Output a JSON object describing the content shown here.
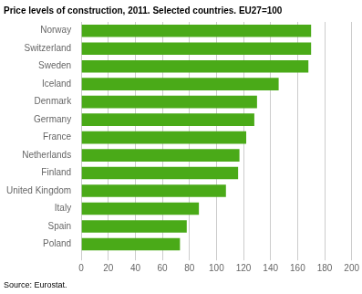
{
  "chart_data": {
    "type": "bar",
    "orientation": "horizontal",
    "title": "Price levels of construction, 2011. Selected countries. EU27=100",
    "categories": [
      "Norway",
      "Switzerland",
      "Sweden",
      "Iceland",
      "Denmark",
      "Germany",
      "France",
      "Netherlands",
      "Finland",
      "United Kingdom",
      "Italy",
      "Spain",
      "Poland"
    ],
    "values": [
      170,
      170,
      168,
      146,
      130,
      128,
      122,
      117,
      116,
      107,
      87,
      78,
      73
    ],
    "color": "#4aaa18",
    "xlim": [
      0,
      200
    ],
    "xticks": [
      0,
      20,
      40,
      60,
      80,
      100,
      120,
      140,
      160,
      180,
      200
    ],
    "grid": true,
    "annotations": [
      "Source: Eurostat."
    ]
  }
}
